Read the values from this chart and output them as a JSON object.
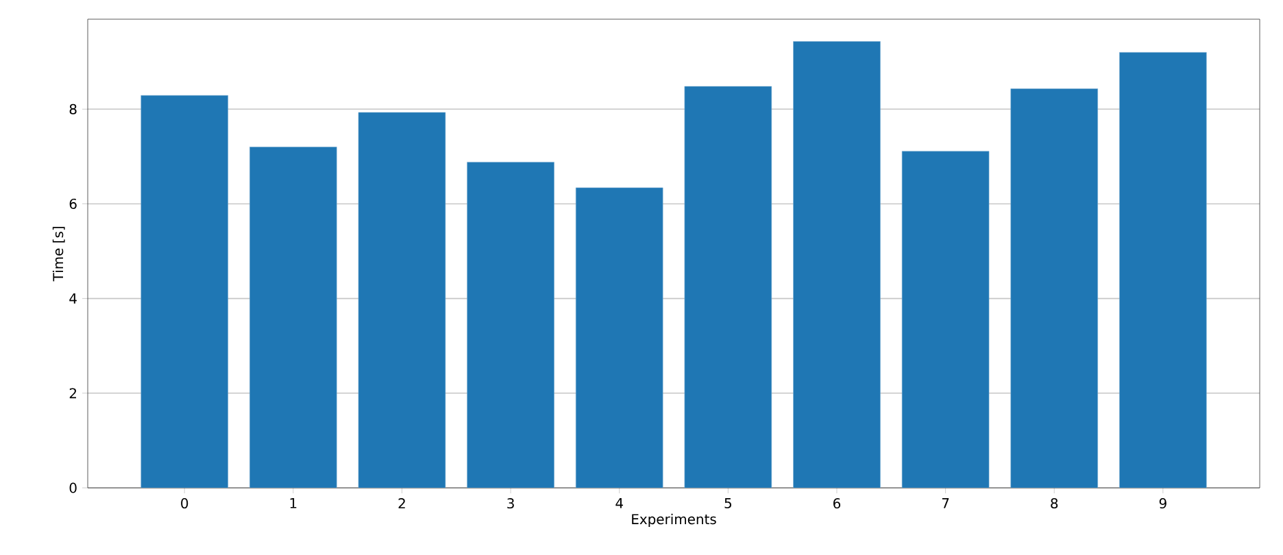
{
  "chart_data": {
    "type": "bar",
    "xlabel": "Experiments",
    "ylabel": "Time [s]",
    "categories": [
      "0",
      "1",
      "2",
      "3",
      "4",
      "5",
      "6",
      "7",
      "8",
      "9"
    ],
    "values": [
      8.29,
      7.2,
      7.93,
      6.88,
      6.34,
      8.48,
      9.43,
      7.11,
      8.43,
      9.2
    ],
    "color": "#1f77b4",
    "ylim": [
      0,
      9.9
    ],
    "yticks": [
      0,
      2,
      4,
      6,
      8
    ],
    "grid": "y"
  }
}
